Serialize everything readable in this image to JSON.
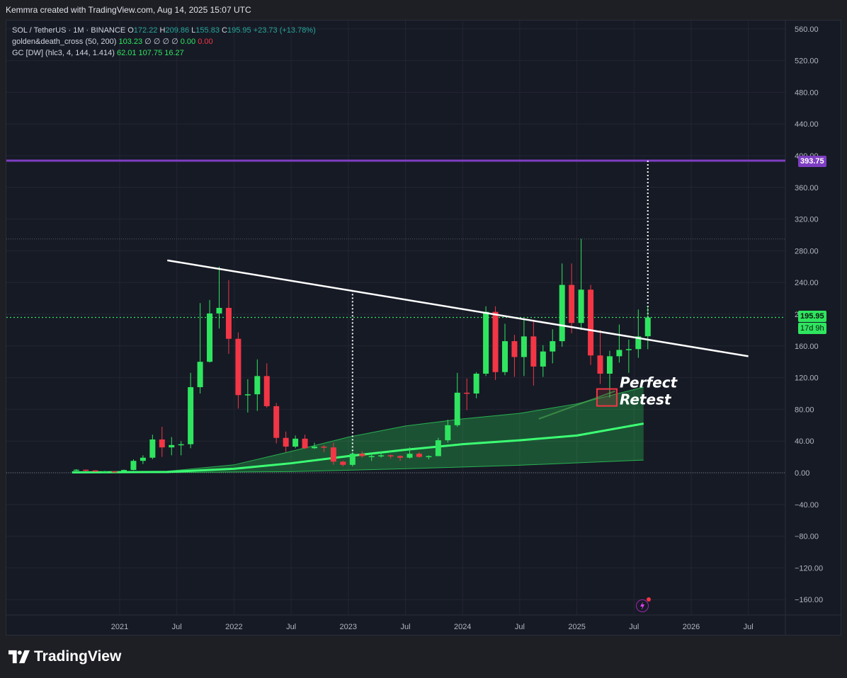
{
  "header": {
    "text": "Kemmra created with TradingView.com, Aug 14, 2025 15:07 UTC"
  },
  "legend": {
    "symbol": "SOL / TetherUS · 1M · BINANCE",
    "o_label": "O",
    "o": "172.22",
    "h_label": "H",
    "h": "209.86",
    "l_label": "L",
    "l": "155.83",
    "c_label": "C",
    "c": "195.95",
    "change": "+23.73 (+13.78%)",
    "indicator1_name": "golden&death_cross (50, 200)",
    "indicator1_value": "103.23",
    "indicator1_flags": "∅ ∅ ∅ ∅",
    "indicator1_v2": "0.00",
    "indicator1_v3": "0.00",
    "indicator2_name": "GC [DW] (hlc3, 4, 144, 1.414)",
    "indicator2_v1": "62.01",
    "indicator2_v2": "107.75",
    "indicator2_v3": "16.27"
  },
  "annotation": {
    "line1": "Perfect",
    "line2": "Retest"
  },
  "price_tags": {
    "resistance": "393.75",
    "current": "195.95",
    "countdown": "17d 9h"
  },
  "footer": {
    "brand": "TradingView"
  },
  "colors": {
    "background": "#161a25",
    "up": "#2fe55f",
    "down": "#f23645",
    "resistance": "#7e3ec2",
    "trendline": "#ffffff",
    "band_fill": "#2fe55f",
    "current_price": "#2fe55f"
  },
  "chart_data": {
    "type": "candlestick",
    "symbol": "SOL / TetherUS",
    "interval": "1M",
    "exchange": "BINANCE",
    "y_range": [
      -180,
      590
    ],
    "y_ticks": [
      560,
      520,
      480,
      440,
      400,
      360,
      320,
      280,
      240,
      200,
      160,
      120,
      80,
      40,
      0,
      -40,
      -80,
      -120,
      -160
    ],
    "y_tick_labels": [
      "560.00",
      "520.00",
      "480.00",
      "440.00",
      "400.00",
      "360.00",
      "320.00",
      "280.00",
      "240.00",
      "200.00",
      "160.00",
      "120.00",
      "80.00",
      "40.00",
      "0.00",
      "−40.00",
      "−80.00",
      "−120.00",
      "−160.00"
    ],
    "x_range": [
      "2020-03",
      "2026-10"
    ],
    "x_ticks": [
      {
        "label": "2021",
        "date": "2021-01"
      },
      {
        "label": "Jul",
        "date": "2021-07"
      },
      {
        "label": "2022",
        "date": "2022-01"
      },
      {
        "label": "Jul",
        "date": "2022-07"
      },
      {
        "label": "2023",
        "date": "2023-01"
      },
      {
        "label": "Jul",
        "date": "2023-07"
      },
      {
        "label": "2024",
        "date": "2024-01"
      },
      {
        "label": "Jul",
        "date": "2024-07"
      },
      {
        "label": "2025",
        "date": "2025-01"
      },
      {
        "label": "Jul",
        "date": "2025-07"
      },
      {
        "label": "2026",
        "date": "2026-01"
      },
      {
        "label": "Jul",
        "date": "2026-07"
      }
    ],
    "candles": [
      {
        "t": "2020-08",
        "o": 3.0,
        "h": 4.5,
        "l": 2.0,
        "c": 3.8
      },
      {
        "t": "2020-09",
        "o": 3.8,
        "h": 4.0,
        "l": 2.0,
        "c": 3.0
      },
      {
        "t": "2020-10",
        "o": 3.0,
        "h": 3.2,
        "l": 1.2,
        "c": 1.5
      },
      {
        "t": "2020-11",
        "o": 1.5,
        "h": 2.5,
        "l": 1.0,
        "c": 1.8
      },
      {
        "t": "2020-12",
        "o": 1.8,
        "h": 2.0,
        "l": 1.2,
        "c": 1.5
      },
      {
        "t": "2021-01",
        "o": 1.5,
        "h": 4.0,
        "l": 1.2,
        "c": 3.5
      },
      {
        "t": "2021-02",
        "o": 3.5,
        "h": 17.0,
        "l": 3.0,
        "c": 15.0
      },
      {
        "t": "2021-03",
        "o": 15.0,
        "h": 22.0,
        "l": 11.0,
        "c": 19.0
      },
      {
        "t": "2021-04",
        "o": 19.0,
        "h": 48.0,
        "l": 17.0,
        "c": 42.0
      },
      {
        "t": "2021-05",
        "o": 42.0,
        "h": 58.0,
        "l": 20.0,
        "c": 32.0
      },
      {
        "t": "2021-06",
        "o": 32.0,
        "h": 45.0,
        "l": 22.0,
        "c": 35.0
      },
      {
        "t": "2021-07",
        "o": 35.0,
        "h": 40.0,
        "l": 22.0,
        "c": 36.0
      },
      {
        "t": "2021-08",
        "o": 36.0,
        "h": 126.0,
        "l": 31.0,
        "c": 108.0
      },
      {
        "t": "2021-09",
        "o": 108.0,
        "h": 214.0,
        "l": 100.0,
        "c": 140.0
      },
      {
        "t": "2021-10",
        "o": 140.0,
        "h": 218.0,
        "l": 139.0,
        "c": 201.0
      },
      {
        "t": "2021-11",
        "o": 201.0,
        "h": 260.0,
        "l": 182.0,
        "c": 208.0
      },
      {
        "t": "2021-12",
        "o": 208.0,
        "h": 243.0,
        "l": 150.0,
        "c": 169.0
      },
      {
        "t": "2022-01",
        "o": 169.0,
        "h": 177.0,
        "l": 81.0,
        "c": 98.0
      },
      {
        "t": "2022-02",
        "o": 98.0,
        "h": 118.0,
        "l": 76.0,
        "c": 99.0
      },
      {
        "t": "2022-03",
        "o": 99.0,
        "h": 143.0,
        "l": 78.0,
        "c": 122.0
      },
      {
        "t": "2022-04",
        "o": 122.0,
        "h": 138.0,
        "l": 82.0,
        "c": 84.0
      },
      {
        "t": "2022-05",
        "o": 84.0,
        "h": 88.0,
        "l": 37.0,
        "c": 44.0
      },
      {
        "t": "2022-06",
        "o": 44.0,
        "h": 52.0,
        "l": 26.0,
        "c": 33.0
      },
      {
        "t": "2022-07",
        "o": 33.0,
        "h": 47.0,
        "l": 31.0,
        "c": 43.0
      },
      {
        "t": "2022-08",
        "o": 43.0,
        "h": 48.0,
        "l": 30.0,
        "c": 31.0
      },
      {
        "t": "2022-09",
        "o": 31.0,
        "h": 38.0,
        "l": 30.0,
        "c": 33.0
      },
      {
        "t": "2022-10",
        "o": 33.0,
        "h": 35.0,
        "l": 26.0,
        "c": 32.0
      },
      {
        "t": "2022-11",
        "o": 32.0,
        "h": 38.0,
        "l": 10.0,
        "c": 14.0
      },
      {
        "t": "2022-12",
        "o": 14.0,
        "h": 15.0,
        "l": 8.0,
        "c": 10.0
      },
      {
        "t": "2023-01",
        "o": 10.0,
        "h": 26.0,
        "l": 8.0,
        "c": 24.0
      },
      {
        "t": "2023-02",
        "o": 24.0,
        "h": 27.0,
        "l": 19.0,
        "c": 21.0
      },
      {
        "t": "2023-03",
        "o": 21.0,
        "h": 24.0,
        "l": 15.0,
        "c": 21.0
      },
      {
        "t": "2023-04",
        "o": 21.0,
        "h": 27.0,
        "l": 19.0,
        "c": 22.0
      },
      {
        "t": "2023-05",
        "o": 22.0,
        "h": 23.0,
        "l": 18.0,
        "c": 21.0
      },
      {
        "t": "2023-06",
        "o": 21.0,
        "h": 22.0,
        "l": 15.0,
        "c": 19.0
      },
      {
        "t": "2023-07",
        "o": 19.0,
        "h": 32.0,
        "l": 18.0,
        "c": 24.0
      },
      {
        "t": "2023-08",
        "o": 24.0,
        "h": 26.0,
        "l": 19.0,
        "c": 20.0
      },
      {
        "t": "2023-09",
        "o": 20.0,
        "h": 22.0,
        "l": 17.0,
        "c": 21.0
      },
      {
        "t": "2023-10",
        "o": 21.0,
        "h": 44.0,
        "l": 21.0,
        "c": 41.0
      },
      {
        "t": "2023-11",
        "o": 41.0,
        "h": 67.0,
        "l": 38.0,
        "c": 60.0
      },
      {
        "t": "2023-12",
        "o": 60.0,
        "h": 126.0,
        "l": 58.0,
        "c": 101.0
      },
      {
        "t": "2024-01",
        "o": 101.0,
        "h": 119.0,
        "l": 79.0,
        "c": 100.0
      },
      {
        "t": "2024-02",
        "o": 100.0,
        "h": 127.0,
        "l": 94.0,
        "c": 125.0
      },
      {
        "t": "2024-03",
        "o": 125.0,
        "h": 210.0,
        "l": 122.0,
        "c": 203.0
      },
      {
        "t": "2024-04",
        "o": 203.0,
        "h": 210.0,
        "l": 117.0,
        "c": 127.0
      },
      {
        "t": "2024-05",
        "o": 127.0,
        "h": 188.0,
        "l": 123.0,
        "c": 166.0
      },
      {
        "t": "2024-06",
        "o": 166.0,
        "h": 174.0,
        "l": 121.0,
        "c": 146.0
      },
      {
        "t": "2024-07",
        "o": 146.0,
        "h": 194.0,
        "l": 122.0,
        "c": 172.0
      },
      {
        "t": "2024-08",
        "o": 172.0,
        "h": 193.0,
        "l": 110.0,
        "c": 134.0
      },
      {
        "t": "2024-09",
        "o": 134.0,
        "h": 161.0,
        "l": 121.0,
        "c": 153.0
      },
      {
        "t": "2024-10",
        "o": 153.0,
        "h": 181.0,
        "l": 138.0,
        "c": 166.0
      },
      {
        "t": "2024-11",
        "o": 166.0,
        "h": 264.0,
        "l": 159.0,
        "c": 237.0
      },
      {
        "t": "2024-12",
        "o": 237.0,
        "h": 264.0,
        "l": 176.0,
        "c": 189.0
      },
      {
        "t": "2025-01",
        "o": 189.0,
        "h": 295.0,
        "l": 180.0,
        "c": 231.0
      },
      {
        "t": "2025-02",
        "o": 231.0,
        "h": 237.0,
        "l": 136.0,
        "c": 148.0
      },
      {
        "t": "2025-03",
        "o": 148.0,
        "h": 180.0,
        "l": 112.0,
        "c": 125.0
      },
      {
        "t": "2025-04",
        "o": 125.0,
        "h": 154.0,
        "l": 95.0,
        "c": 147.0
      },
      {
        "t": "2025-05",
        "o": 147.0,
        "h": 187.0,
        "l": 139.0,
        "c": 155.0
      },
      {
        "t": "2025-06",
        "o": 155.0,
        "h": 168.0,
        "l": 126.0,
        "c": 156.0
      },
      {
        "t": "2025-07",
        "o": 156.0,
        "h": 206.0,
        "l": 145.0,
        "c": 172.0
      },
      {
        "t": "2025-08",
        "o": 172.22,
        "h": 209.86,
        "l": 155.83,
        "c": 195.95
      }
    ],
    "moving_average_200": [
      {
        "t": "2020-08",
        "v": 0.5
      },
      {
        "t": "2021-06",
        "v": 1.0
      },
      {
        "t": "2022-01",
        "v": 5.0
      },
      {
        "t": "2022-07",
        "v": 12.0
      },
      {
        "t": "2023-01",
        "v": 21.0
      },
      {
        "t": "2023-07",
        "v": 29.0
      },
      {
        "t": "2024-01",
        "v": 36.0
      },
      {
        "t": "2024-07",
        "v": 41.0
      },
      {
        "t": "2025-01",
        "v": 47.0
      },
      {
        "t": "2025-08",
        "v": 62.0
      }
    ],
    "band_upper": [
      {
        "t": "2020-08",
        "v": 1.0
      },
      {
        "t": "2021-06",
        "v": 2.0
      },
      {
        "t": "2022-01",
        "v": 10.0
      },
      {
        "t": "2022-07",
        "v": 27.0
      },
      {
        "t": "2023-01",
        "v": 45.0
      },
      {
        "t": "2023-07",
        "v": 59.0
      },
      {
        "t": "2024-01",
        "v": 68.0
      },
      {
        "t": "2024-07",
        "v": 75.0
      },
      {
        "t": "2025-01",
        "v": 87.0
      },
      {
        "t": "2025-08",
        "v": 108.0
      }
    ],
    "band_lower": [
      {
        "t": "2020-08",
        "v": 0.0
      },
      {
        "t": "2021-06",
        "v": 0.2
      },
      {
        "t": "2022-07",
        "v": 1.5
      },
      {
        "t": "2023-07",
        "v": 5.0
      },
      {
        "t": "2024-07",
        "v": 9.5
      },
      {
        "t": "2025-08",
        "v": 16.0
      }
    ],
    "trendline": {
      "from": {
        "t": "2021-06",
        "v": 268
      },
      "to": {
        "t": "2026-07",
        "v": 147
      }
    },
    "resistance_level": 393.75,
    "current_price": 195.95,
    "retest_marker": {
      "t": "2025-04",
      "v": 95
    },
    "vertical_markers": [
      {
        "t": "2023-01",
        "from": 10,
        "to": 230
      },
      {
        "t": "2025-08",
        "from": 175,
        "to": 393.75
      }
    ],
    "grid": true
  }
}
